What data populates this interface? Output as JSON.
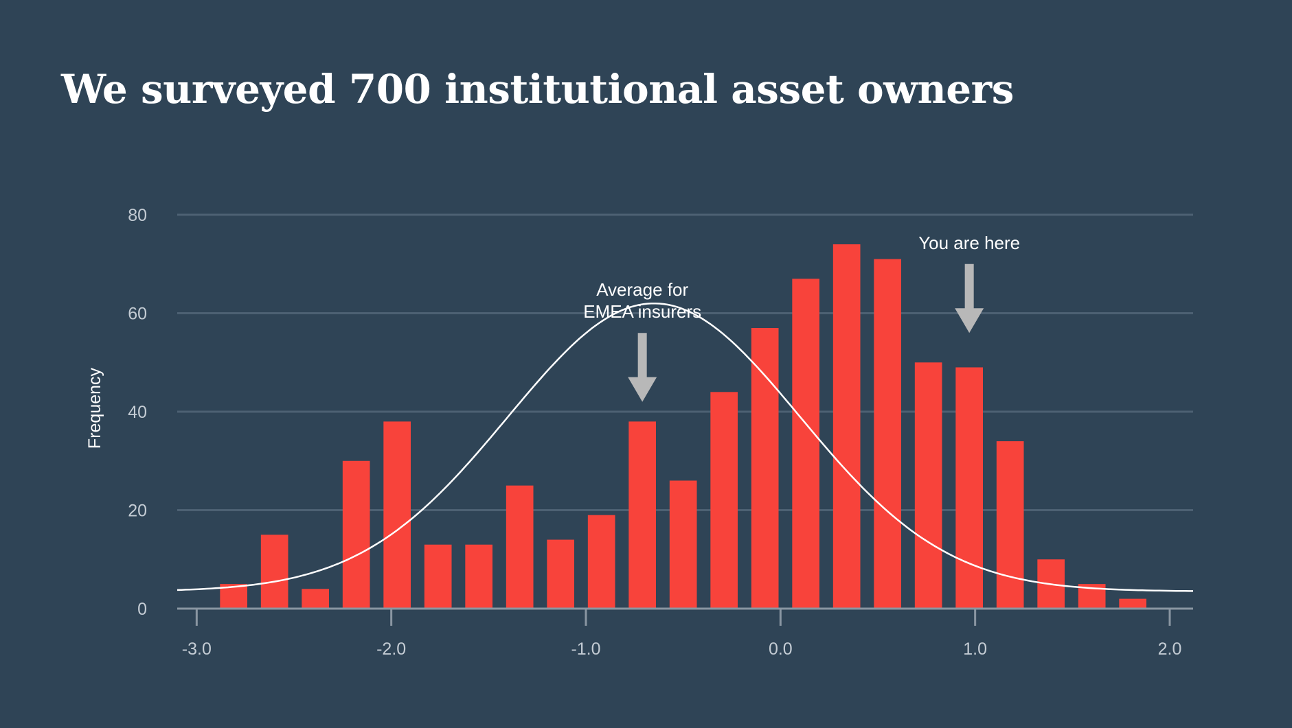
{
  "title": "We surveyed 700 institutional asset owners",
  "colors": {
    "background": "#2f4456",
    "bar": "#f8433b",
    "curve": "#ffffff",
    "grid": "#4d6173",
    "arrow": "#b8b8b8"
  },
  "chart_data": {
    "type": "bar",
    "title": "We surveyed 700 institutional asset owners",
    "xlabel": "",
    "ylabel": "Frequency",
    "xlim": [
      -3.1,
      2.12
    ],
    "ylim": [
      0,
      80
    ],
    "grid": true,
    "x_ticks": [
      {
        "value": -3.0,
        "label": "-3.0"
      },
      {
        "value": -2.0,
        "label": "-2.0"
      },
      {
        "value": -1.0,
        "label": "-1.0"
      },
      {
        "value": 0.0,
        "label": "0.0"
      },
      {
        "value": 1.0,
        "label": "1.0"
      },
      {
        "value": 2.0,
        "label": "2.0"
      }
    ],
    "y_ticks": [
      {
        "value": 0,
        "label": "0"
      },
      {
        "value": 20,
        "label": "20"
      },
      {
        "value": 40,
        "label": "40"
      },
      {
        "value": 60,
        "label": "60"
      },
      {
        "value": 80,
        "label": "80"
      }
    ],
    "bar_width": 0.14,
    "bars": [
      {
        "x": -2.81,
        "value": 5
      },
      {
        "x": -2.6,
        "value": 15
      },
      {
        "x": -2.39,
        "value": 4
      },
      {
        "x": -2.18,
        "value": 30
      },
      {
        "x": -1.97,
        "value": 38
      },
      {
        "x": -1.76,
        "value": 13
      },
      {
        "x": -1.55,
        "value": 13
      },
      {
        "x": -1.34,
        "value": 25
      },
      {
        "x": -1.13,
        "value": 14
      },
      {
        "x": -0.92,
        "value": 19
      },
      {
        "x": -0.71,
        "value": 38
      },
      {
        "x": -0.5,
        "value": 26
      },
      {
        "x": -0.29,
        "value": 44
      },
      {
        "x": -0.08,
        "value": 57
      },
      {
        "x": 0.13,
        "value": 67
      },
      {
        "x": 0.34,
        "value": 74
      },
      {
        "x": 0.55,
        "value": 71
      },
      {
        "x": 0.76,
        "value": 50
      },
      {
        "x": 0.97,
        "value": 49
      },
      {
        "x": 1.18,
        "value": 34
      },
      {
        "x": 1.39,
        "value": 10
      },
      {
        "x": 1.6,
        "value": 5
      },
      {
        "x": 1.81,
        "value": 2
      }
    ],
    "curve": {
      "type": "normal",
      "mean": -0.65,
      "sd": 0.75,
      "peak": 62,
      "baseline": 3.5,
      "x_range": [
        -3.1,
        2.12
      ]
    },
    "annotations": [
      {
        "id": "emea",
        "lines": [
          "Average for",
          "EMEA insurers"
        ],
        "x": -0.71,
        "arrow_top": 56,
        "arrow_tip": 42
      },
      {
        "id": "you",
        "lines": [
          "You are here"
        ],
        "x": 0.97,
        "arrow_top": 70,
        "arrow_tip": 56
      }
    ]
  }
}
